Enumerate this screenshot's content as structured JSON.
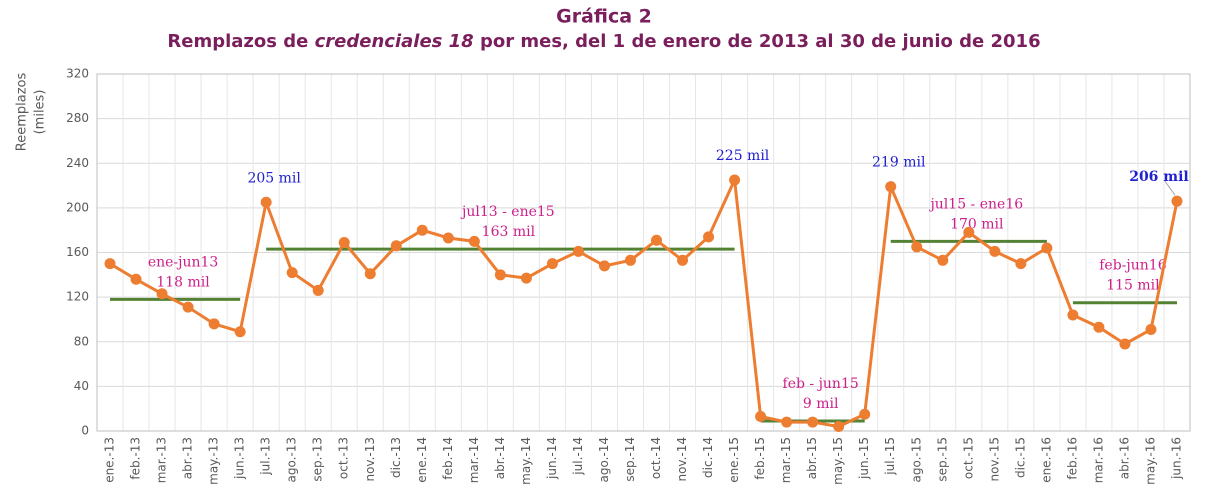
{
  "chart_data": {
    "type": "line",
    "title": "Gráfica 2",
    "subtitle": [
      "Remplazos de ",
      "credenciales 18",
      " por mes, del 1 de enero de 2013 al 30 de junio de 2016"
    ],
    "y_label": [
      "Reemplazos",
      "(miles)"
    ],
    "categories": [
      "ene.-13",
      "feb.-13",
      "mar.-13",
      "abr.-13",
      "may.-13",
      "jun.-13",
      "jul.-13",
      "ago.-13",
      "sep.-13",
      "oct.-13",
      "nov.-13",
      "dic.-13",
      "ene.-14",
      "feb.-14",
      "mar.-14",
      "abr.-14",
      "may.-14",
      "jun.-14",
      "jul.-14",
      "ago.-14",
      "sep.-14",
      "oct.-14",
      "nov.-14",
      "dic.-14",
      "ene.-15",
      "feb.-15",
      "mar.-15",
      "abr.-15",
      "may.-15",
      "jun.-15",
      "jul.-15",
      "ago.-15",
      "sep.-15",
      "oct.-15",
      "nov.-15",
      "dic.-15",
      "ene.-16",
      "feb.-16",
      "mar.-16",
      "abr.-16",
      "may.-16",
      "jun.-16"
    ],
    "series": [
      {
        "name": "Remplazos",
        "color": "#ed7d31",
        "values": [
          150,
          136,
          123,
          111,
          96,
          89,
          205,
          142,
          126,
          169,
          141,
          166,
          180,
          173,
          170,
          140,
          137,
          150,
          161,
          148,
          153,
          171,
          153,
          174,
          225,
          13,
          8,
          8,
          4,
          15,
          219,
          165,
          153,
          178,
          161,
          150,
          164,
          104,
          93,
          78,
          91,
          206
        ],
        "value_labels": [
          null,
          null,
          null,
          null,
          null,
          null,
          "205 mil",
          null,
          null,
          null,
          null,
          null,
          null,
          null,
          null,
          null,
          null,
          null,
          null,
          null,
          null,
          null,
          null,
          null,
          "225 mil",
          null,
          null,
          null,
          null,
          null,
          "219 mil",
          null,
          null,
          null,
          null,
          null,
          null,
          null,
          null,
          null,
          null,
          "206 mil"
        ]
      }
    ],
    "averages": {
      "color": "#548235",
      "label_color": "#cc1f8a",
      "items": [
        {
          "label": "ene-jun13",
          "value": 118,
          "value_label": "118 mil",
          "start": "ene.-13",
          "end": "jun.-13"
        },
        {
          "label": "jul13 - ene15",
          "value": 163,
          "value_label": "163 mil",
          "start": "jul.-13",
          "end": "ene.-15"
        },
        {
          "label": "feb - jun15",
          "value": 9,
          "value_label": "9 mil",
          "start": "feb.-15",
          "end": "jun.-15"
        },
        {
          "label": "jul15 - ene16",
          "value": 170,
          "value_label": "170 mil",
          "start": "jul.-15",
          "end": "ene.-16"
        },
        {
          "label": "feb-jun16",
          "value": 115,
          "value_label": "115 mil",
          "start": "feb.-16",
          "end": "jun.-16"
        }
      ]
    },
    "ylim": [
      0,
      320
    ],
    "yticks": [
      0,
      40,
      80,
      120,
      160,
      200,
      240,
      280,
      320
    ],
    "grid": true
  }
}
